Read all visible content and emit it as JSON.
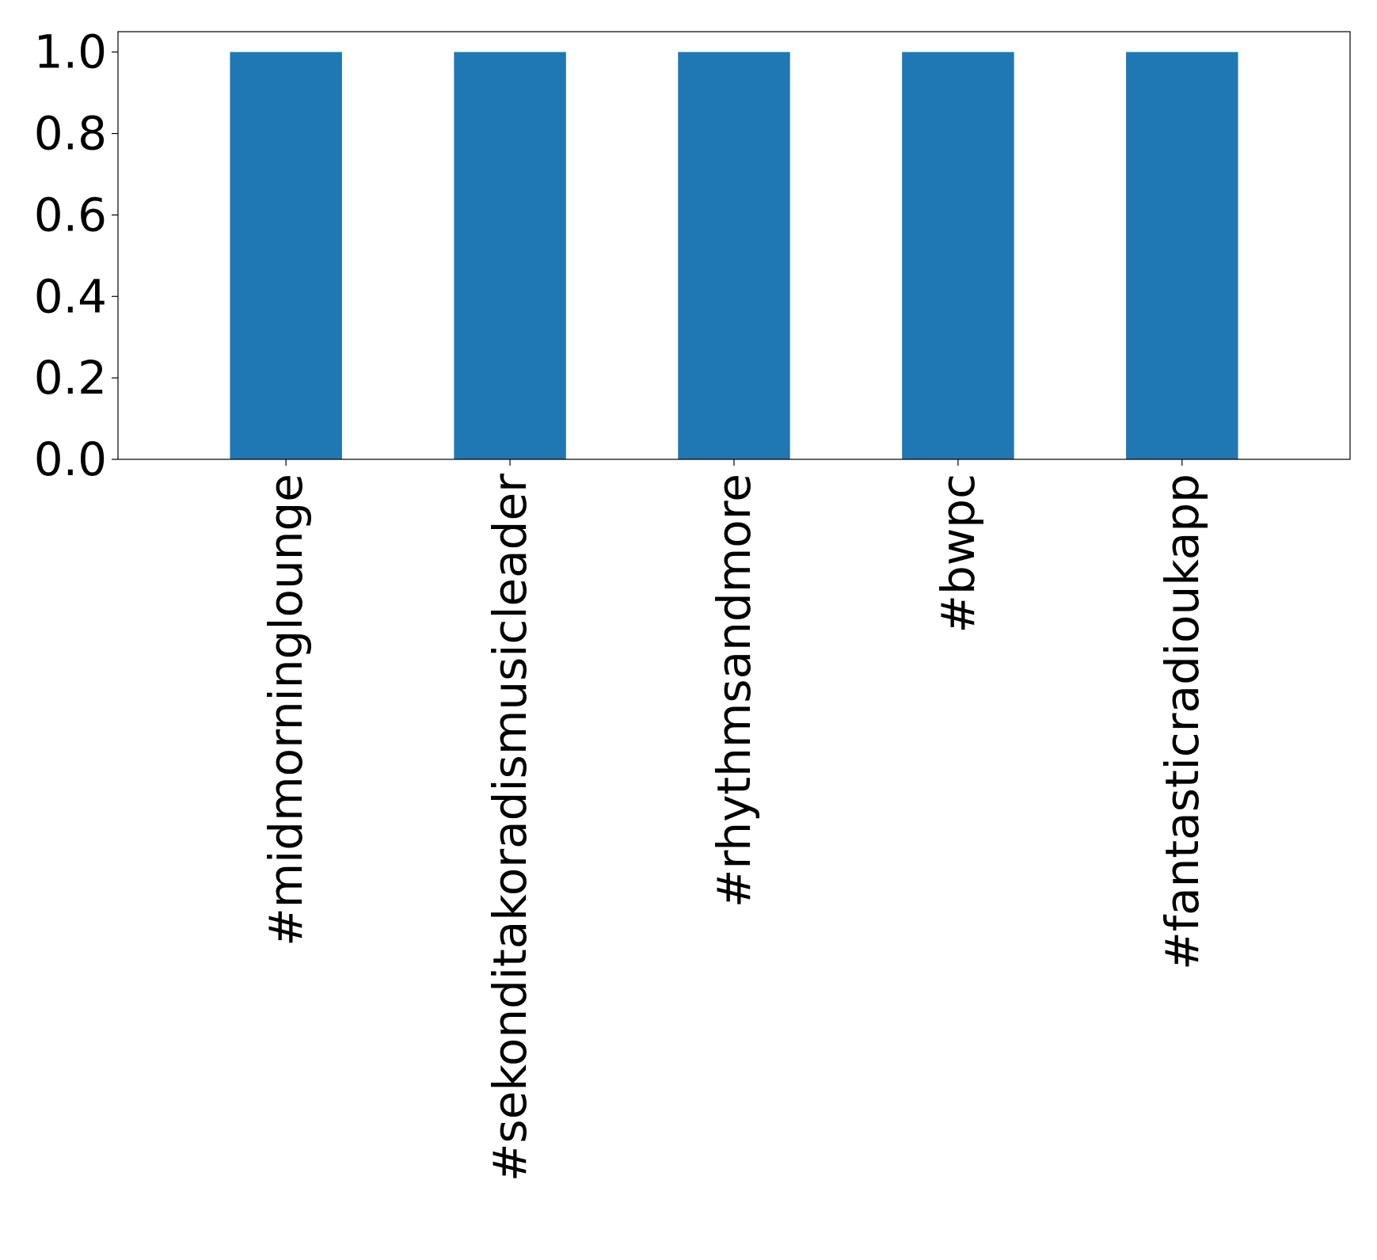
{
  "chart_data": {
    "type": "bar",
    "title": "",
    "xlabel": "",
    "ylabel": "",
    "categories": [
      "#midmorninglounge",
      "#sekonditakoradismusicleader",
      "#rhythmsandmore",
      "#bwpc",
      "#fantasticradioukapp"
    ],
    "values": [
      1.0,
      1.0,
      1.0,
      1.0,
      1.0
    ],
    "ylim": [
      0,
      1.05
    ],
    "yticks": [
      0.0,
      0.2,
      0.4,
      0.6,
      0.8,
      1.0
    ],
    "yticklabels": [
      "0.0",
      "0.2",
      "0.4",
      "0.6",
      "0.8",
      "1.0"
    ],
    "bar_color": "#1f77b4",
    "grid": false,
    "legend": "none"
  }
}
